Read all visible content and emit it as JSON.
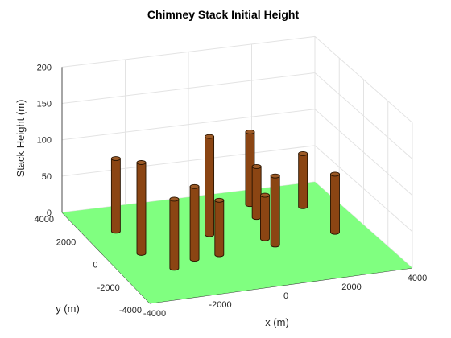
{
  "chart_data": {
    "type": "bar3d",
    "title": "Chimney Stack Initial Height",
    "xlabel": "x (m)",
    "ylabel": "y (m)",
    "zlabel": "Stack Height (m)",
    "xlim": [
      -4000,
      4000
    ],
    "ylim": [
      -4000,
      4000
    ],
    "zlim": [
      0,
      200
    ],
    "x_ticks": [
      "-4000",
      "-2000",
      "0",
      "2000",
      "4000"
    ],
    "y_ticks": [
      "-4000",
      "-2000",
      "0",
      "2000",
      "4000"
    ],
    "z_ticks": [
      "0",
      "50",
      "100",
      "150",
      "200"
    ],
    "grid": true,
    "ground_color": "#80ff80",
    "stack_color": "#8b4513",
    "stacks": [
      {
        "x": -3000,
        "y": 2000,
        "height": 100
      },
      {
        "x": -2900,
        "y": 0,
        "height": 125
      },
      {
        "x": -2400,
        "y": -1500,
        "height": 95
      },
      {
        "x": -500,
        "y": 800,
        "height": 135
      },
      {
        "x": -800,
        "y": -900,
        "height": 75
      },
      {
        "x": -1600,
        "y": -1000,
        "height": 100
      },
      {
        "x": 1500,
        "y": 2800,
        "height": 100
      },
      {
        "x": 1300,
        "y": 1700,
        "height": 70
      },
      {
        "x": 1000,
        "y": -700,
        "height": 95
      },
      {
        "x": 900,
        "y": -100,
        "height": 60
      },
      {
        "x": 2900,
        "y": 2100,
        "height": 73
      },
      {
        "x": 3000,
        "y": -300,
        "height": 80
      }
    ]
  }
}
